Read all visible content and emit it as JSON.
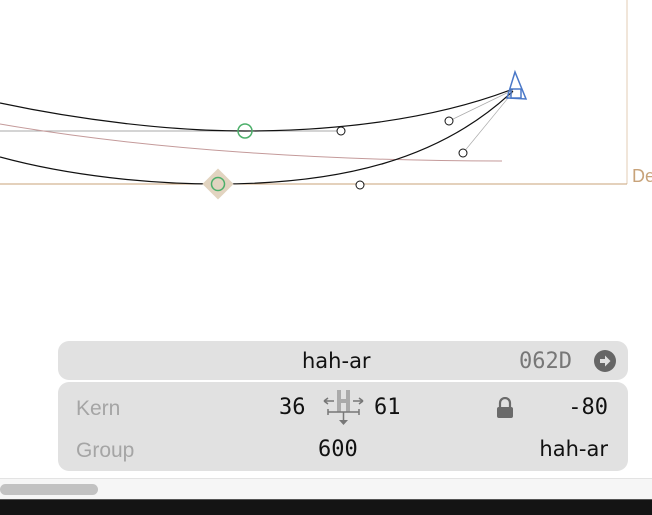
{
  "canvas": {
    "metric_label": "De",
    "colors": {
      "outline": "#111111",
      "node_green": "#4caf6a",
      "anchor_blue": "#4a78c8",
      "metric_line": "#c8a37a",
      "secondary_path": "#c49a9a"
    }
  },
  "glyph_info": {
    "glyph_name": "hah-ar",
    "unicode": "062D",
    "unicode_link_icon": "arrow-circle-right-icon"
  },
  "kerning": {
    "kern_label": "Kern",
    "left_sidebearing": "36",
    "right_sidebearing": "61",
    "metrics_icon": "sidebearing-arrows-icon",
    "lock_icon": "lock-icon",
    "kern_value": "-80",
    "group_label": "Group",
    "width": "600",
    "group_name": "hah-ar"
  }
}
